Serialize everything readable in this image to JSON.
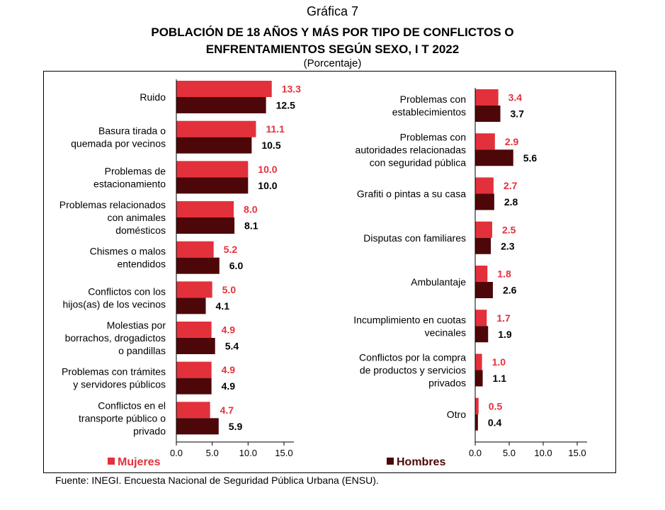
{
  "header": {
    "kicker": "Gráfica 7",
    "title_line1": "POBLACIÓN DE 18 AÑOS Y MÁS POR TIPO DE CONFLICTOS O",
    "title_line2": "ENFRENTAMIENTOS SEGÚN SEXO, I T 2022",
    "unit": "(Porcentaje)"
  },
  "colors": {
    "mujeres": "#e3313b",
    "hombres": "#4d0708"
  },
  "legend": {
    "mujeres": "Mujeres",
    "hombres": "Hombres"
  },
  "chart_data": [
    {
      "type": "bar",
      "orientation": "horizontal",
      "categories": [
        [
          "Ruido"
        ],
        [
          "Basura tirada o",
          "quemada por vecinos"
        ],
        [
          "Problemas de",
          "estacionamiento"
        ],
        [
          "Problemas relacionados",
          "con animales",
          "domésticos"
        ],
        [
          "Chismes o malos",
          "entendidos"
        ],
        [
          "Conflictos con los",
          "hijos(as) de los vecinos"
        ],
        [
          "Molestias por",
          "borrachos, drogadictos",
          "o pandillas"
        ],
        [
          "Problemas con trámites",
          "y servidores públicos"
        ],
        [
          "Conflictos en el",
          "transporte público o",
          "privado"
        ]
      ],
      "series": [
        {
          "name": "Mujeres",
          "values": [
            13.3,
            11.1,
            10.0,
            8.0,
            5.2,
            5.0,
            4.9,
            4.9,
            4.7
          ],
          "labels": [
            "13.3",
            "11.1",
            "10.0",
            "8.0",
            "5.2",
            "5.0",
            "4.9",
            "4.9",
            "4.7"
          ]
        },
        {
          "name": "Hombres",
          "values": [
            12.5,
            10.5,
            10.0,
            8.1,
            6.0,
            4.1,
            5.4,
            4.9,
            5.9
          ],
          "labels": [
            "12.5",
            "10.5",
            "10.0",
            "8.1",
            "6.0",
            "4.1",
            "5.4",
            "4.9",
            "5.9"
          ]
        }
      ],
      "xlim": [
        0,
        15
      ],
      "xticks": [
        "0.0",
        "5.0",
        "10.0",
        "15.0"
      ],
      "grid": false
    },
    {
      "type": "bar",
      "orientation": "horizontal",
      "categories": [
        [
          "Problemas con",
          "establecimientos"
        ],
        [
          "Problemas con",
          "autoridades relacionadas",
          "con seguridad pública"
        ],
        [
          "Grafiti o pintas a su casa"
        ],
        [
          "Disputas con familiares"
        ],
        [
          "Ambulantaje"
        ],
        [
          "Incumplimiento en cuotas",
          "vecinales"
        ],
        [
          "Conflictos por la compra",
          "de productos y servicios",
          "privados"
        ],
        [
          "Otro"
        ]
      ],
      "series": [
        {
          "name": "Mujeres",
          "values": [
            3.4,
            2.9,
            2.7,
            2.5,
            1.8,
            1.7,
            1.0,
            0.5
          ],
          "labels": [
            "3.4",
            "2.9",
            "2.7",
            "2.5",
            "1.8",
            "1.7",
            "1.0",
            "0.5"
          ]
        },
        {
          "name": "Hombres",
          "values": [
            3.7,
            5.6,
            2.8,
            2.3,
            2.6,
            1.9,
            1.1,
            0.4
          ],
          "labels": [
            "3.7",
            "5.6",
            "2.8",
            "2.3",
            "2.6",
            "1.9",
            "1.1",
            "0.4"
          ]
        }
      ],
      "xlim": [
        0,
        15
      ],
      "xticks": [
        "0.0",
        "5.0",
        "10.0",
        "15.0"
      ],
      "grid": false
    }
  ],
  "source": "Fuente: INEGI. Encuesta Nacional de Seguridad Pública Urbana (ENSU)."
}
